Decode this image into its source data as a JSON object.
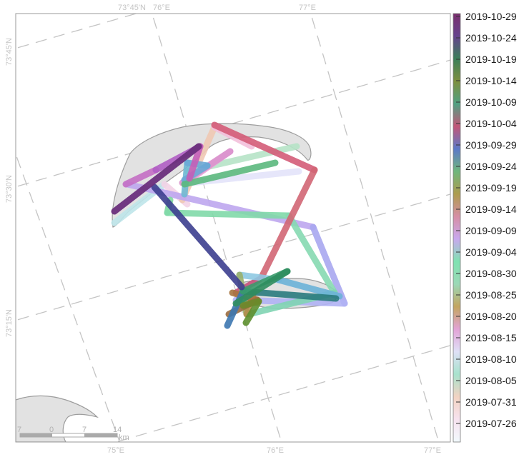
{
  "map": {
    "top_ticks": [
      "73°45'N",
      "76°E",
      "77°E"
    ],
    "left_ticks": [
      "73°45'N",
      "73°30'N",
      "73°15'N"
    ],
    "bottom_ticks": [
      "75°E",
      "76°E",
      "77°E"
    ]
  },
  "legend": {
    "labels": [
      "2019-10-29",
      "2019-10-24",
      "2019-10-19",
      "2019-10-14",
      "2019-10-09",
      "2019-10-04",
      "2019-09-29",
      "2019-09-24",
      "2019-09-19",
      "2019-09-14",
      "2019-09-09",
      "2019-09-04",
      "2019-08-30",
      "2019-08-25",
      "2019-08-20",
      "2019-08-15",
      "2019-08-10",
      "2019-08-05",
      "2019-07-31",
      "2019-07-26"
    ],
    "colorbar": [
      "#f2f9fd",
      "#f7e2ef",
      "#f2d3c2",
      "#a8e2cd",
      "#dfe0f6",
      "#e2a3d6",
      "#c3a560",
      "#9bd8b6",
      "#7fe2b1",
      "#c8a8ee",
      "#d68ea5",
      "#ad9c4e",
      "#6fb67c",
      "#5c79c8",
      "#c25678",
      "#4fa082",
      "#7d8f3f",
      "#3b7f5a",
      "#65438d",
      "#7b2f6e"
    ]
  },
  "scale_bar": {
    "labels": [
      "7",
      "0",
      "7",
      "14"
    ],
    "unit": "km"
  }
}
